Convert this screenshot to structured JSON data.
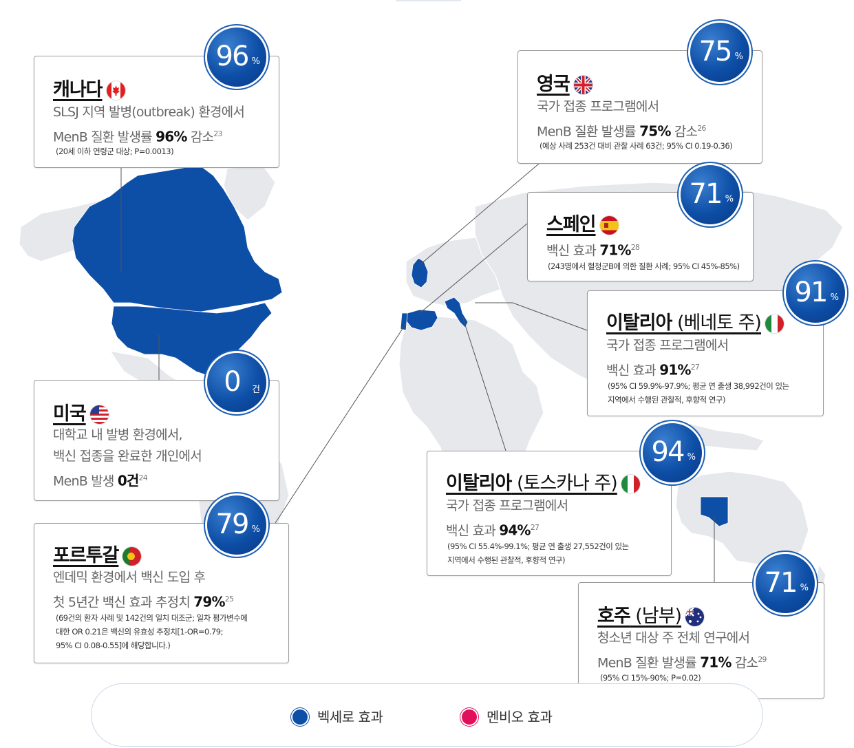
{
  "countries": {
    "canada": {
      "badge_num": "96",
      "badge_unit": "%",
      "title": "캐나다",
      "line1": "SLSJ 지역 발병(outbreak) 환경에서",
      "line2_pre": "MenB 질환 발생률 ",
      "line2_bold": "96%",
      "line2_post": " 감소",
      "ref": "23",
      "note1": "(20세 이하 연령군 대상; P=0.0013)"
    },
    "usa": {
      "badge_num": "0",
      "badge_unit": "건",
      "title": "미국",
      "line1": "대학교 내 발병 환경에서,",
      "line2": "백신 접종을 완료한 개인에서",
      "line3_pre": "MenB 발생 ",
      "line3_bold": "0건",
      "ref": "24"
    },
    "portugal": {
      "badge_num": "79",
      "badge_unit": "%",
      "title": "포르투갈",
      "line1": "엔데믹 환경에서 백신 도입 후",
      "line2_pre": "첫 5년간 백신 효과 추정치 ",
      "line2_bold": "79%",
      "ref": "25",
      "note1": "(69건의 환자 사례 및 142건의 일치 대조군; 일차 평가변수에",
      "note2": "대한 OR 0.21은 백신의 유효성 추정치[1-OR=0.79;",
      "note3": "95% CI 0.08-0.55]에 해당합니다.)"
    },
    "uk": {
      "badge_num": "75",
      "badge_unit": "%",
      "title": "영국",
      "line1": "국가 접종 프로그램에서",
      "line2_pre": "MenB 질환 발생률 ",
      "line2_bold": "75%",
      "line2_post": " 감소",
      "ref": "26",
      "note1": "(예상 사례 253건 대비 관찰 사례 63건; 95% CI 0.19-0.36)"
    },
    "spain": {
      "badge_num": "71",
      "badge_unit": "%",
      "title": "스페인",
      "line1_pre": "백신 효과 ",
      "line1_bold": "71%",
      "ref": "28",
      "note1": "(243명에서 혈청군B에 의한 질환 사례; 95% CI 45%-85%)"
    },
    "italy_veneto": {
      "badge_num": "91",
      "badge_unit": "%",
      "title": "이탈리아",
      "title_sub": " (베네토 주)",
      "line1": "국가 접종 프로그램에서",
      "line2_pre": "백신 효과 ",
      "line2_bold": "91%",
      "ref": "27",
      "note1": "(95% CI 59.9%-97.9%; 평균 연 출생 38,992건이 있는",
      "note2": "지역에서 수행된 관찰적, 후향적 연구)"
    },
    "italy_tuscany": {
      "badge_num": "94",
      "badge_unit": "%",
      "title": "이탈리아",
      "title_sub": " (토스카나 주)",
      "line1": "국가 접종 프로그램에서",
      "line2_pre": "백신 효과 ",
      "line2_bold": "94%",
      "ref": "27",
      "note1": "(95% CI 55.4%-99.1%; 평균 연 출생 27,552건이 있는",
      "note2": "지역에서 수행된 관찰적, 후향적 연구)"
    },
    "australia": {
      "badge_num": "71",
      "badge_unit": "%",
      "title": "호주",
      "title_sub": " (남부)",
      "line1": "청소년 대상 주 전체 연구에서",
      "line2_pre": "MenB 질환 발생률 ",
      "line2_bold": "71%",
      "line2_post": " 감소",
      "ref": "29",
      "note1": "(95% CI 15%-90%; P=0.02)"
    }
  },
  "legend": {
    "bexsero": "벡세로 효과",
    "menveo": "멘비오 효과"
  },
  "colors": {
    "highlight": "#0d4ea6",
    "map_land": "#e6e8ec",
    "menveo": "#e0105c"
  }
}
